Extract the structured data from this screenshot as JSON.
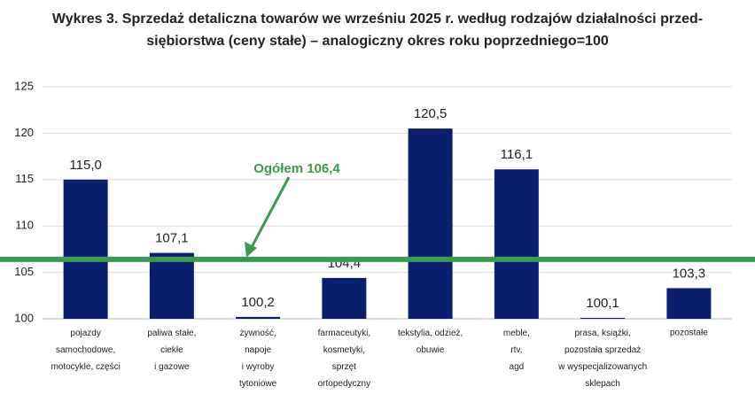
{
  "chart_data": {
    "type": "bar",
    "title": "Wykres 3. Sprzedaż detaliczna towarów we wrześniu 2025 r. według rodzajów działalności przed-\nsiębiorstwa (ceny stałe) – analogiczny okres roku poprzedniego=100",
    "categories": [
      "pojazdy\nsamochodowe,\nmotocykle,  części",
      "paliwa stałe,\nciekłe\ni gazowe",
      "żywność,\nnapoje\ni wyroby\ntytoniowe",
      "farmaceutyki,\nkosmetyki,\nsprzęt\nortopedyczny",
      "tekstylia, odzież,\nobuwie",
      "meble,\nrtv,\nagd",
      "prasa, książki,\npozostała sprzedaż\nw wyspecjalizowanych\nsklepach",
      "pozostałe"
    ],
    "values": [
      115.0,
      107.1,
      100.2,
      104.4,
      120.5,
      116.1,
      100.1,
      103.3
    ],
    "value_labels": [
      "115,0",
      "107,1",
      "100,2",
      "104,4",
      "120,5",
      "116,1",
      "100,1",
      "103,3"
    ],
    "color": "#0a1f6e",
    "ylim": [
      100,
      125
    ],
    "yticks": [
      100,
      105,
      110,
      115,
      120,
      125
    ],
    "grid": true,
    "reference_line": {
      "value": 106.4,
      "label": "Ogółem 106,4",
      "color": "#3a9a4f"
    }
  }
}
